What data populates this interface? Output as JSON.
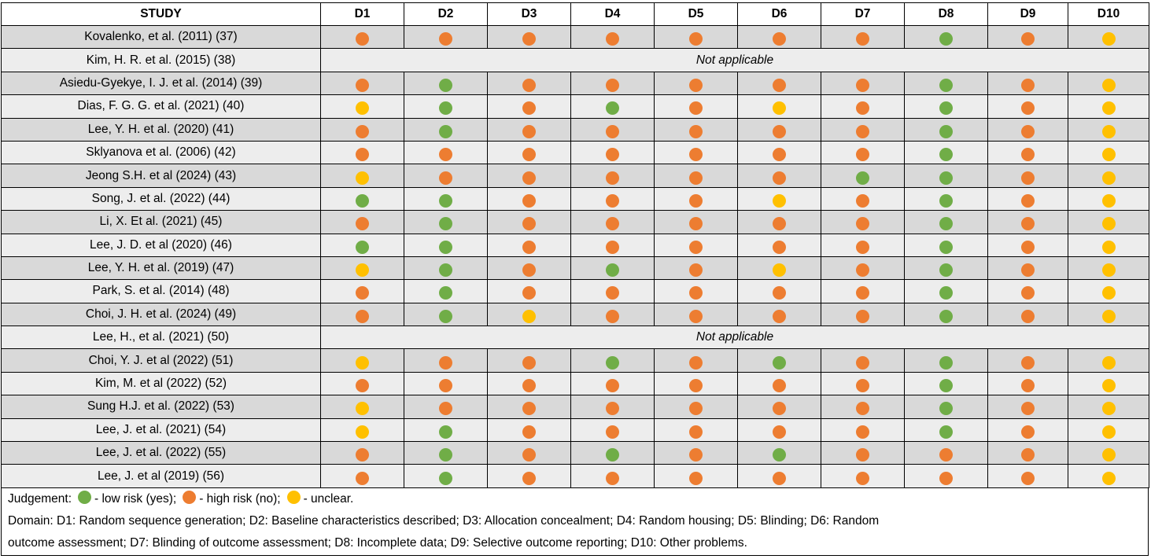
{
  "colors": {
    "g": "#70ad47",
    "o": "#ed7d31",
    "y": "#ffc000"
  },
  "header": {
    "study": "STUDY",
    "domains": [
      "D1",
      "D2",
      "D3",
      "D4",
      "D5",
      "D6",
      "D7",
      "D8",
      "D9",
      "D10"
    ]
  },
  "not_applicable_label": "Not applicable",
  "rows": [
    {
      "study": "Kovalenko, et al. (2011) (37)",
      "judgements": [
        "o",
        "o",
        "o",
        "o",
        "o",
        "o",
        "o",
        "g",
        "o",
        "y"
      ]
    },
    {
      "study": "Kim, H. R. et al. (2015) (38)",
      "not_applicable": true
    },
    {
      "study": "Asiedu-Gyekye, I. J. et al. (2014) (39)",
      "judgements": [
        "o",
        "g",
        "o",
        "o",
        "o",
        "o",
        "o",
        "g",
        "o",
        "y"
      ]
    },
    {
      "study": "Dias, F. G. G. et al. (2021) (40)",
      "judgements": [
        "y",
        "g",
        "o",
        "g",
        "o",
        "y",
        "o",
        "g",
        "o",
        "y"
      ]
    },
    {
      "study": "Lee, Y. H. et al. (2020) (41)",
      "judgements": [
        "o",
        "g",
        "o",
        "o",
        "o",
        "o",
        "o",
        "g",
        "o",
        "y"
      ]
    },
    {
      "study": "Sklyanova et al. (2006) (42)",
      "judgements": [
        "o",
        "o",
        "o",
        "o",
        "o",
        "o",
        "o",
        "g",
        "o",
        "y"
      ]
    },
    {
      "study": "Jeong S.H. et al (2024) (43)",
      "judgements": [
        "y",
        "o",
        "o",
        "o",
        "o",
        "o",
        "g",
        "g",
        "o",
        "y"
      ]
    },
    {
      "study": "Song, J. et al. (2022) (44)",
      "judgements": [
        "g",
        "g",
        "o",
        "o",
        "o",
        "y",
        "o",
        "g",
        "o",
        "y"
      ]
    },
    {
      "study": "Li, X. Et al. (2021) (45)",
      "judgements": [
        "o",
        "g",
        "o",
        "o",
        "o",
        "o",
        "o",
        "g",
        "o",
        "y"
      ]
    },
    {
      "study": "Lee, J. D. et al (2020) (46)",
      "judgements": [
        "g",
        "g",
        "o",
        "o",
        "o",
        "o",
        "o",
        "g",
        "o",
        "y"
      ]
    },
    {
      "study": "Lee, Y. H. et al. (2019) (47)",
      "judgements": [
        "y",
        "g",
        "o",
        "g",
        "o",
        "y",
        "o",
        "g",
        "o",
        "y"
      ]
    },
    {
      "study": "Park, S. et al. (2014) (48)",
      "judgements": [
        "o",
        "g",
        "o",
        "o",
        "o",
        "o",
        "o",
        "g",
        "o",
        "y"
      ]
    },
    {
      "study": "Choi, J. H. et al. (2024) (49)",
      "judgements": [
        "o",
        "g",
        "y",
        "o",
        "o",
        "o",
        "o",
        "g",
        "o",
        "y"
      ]
    },
    {
      "study": "Lee, H., et al. (2021) (50)",
      "not_applicable": true
    },
    {
      "study": "Choi, Y. J. et al (2022) (51)",
      "judgements": [
        "y",
        "o",
        "o",
        "g",
        "o",
        "g",
        "o",
        "g",
        "o",
        "y"
      ]
    },
    {
      "study": "Kim, M. et al (2022) (52)",
      "judgements": [
        "o",
        "o",
        "o",
        "o",
        "o",
        "o",
        "o",
        "g",
        "o",
        "y"
      ]
    },
    {
      "study": "Sung H.J. et al. (2022) (53)",
      "judgements": [
        "y",
        "o",
        "o",
        "o",
        "o",
        "o",
        "o",
        "g",
        "o",
        "y"
      ]
    },
    {
      "study": "Lee, J. et al. (2021) (54)",
      "judgements": [
        "y",
        "g",
        "o",
        "o",
        "o",
        "o",
        "o",
        "g",
        "o",
        "y"
      ]
    },
    {
      "study": "Lee, J. et al. (2022) (55)",
      "judgements": [
        "o",
        "g",
        "o",
        "g",
        "o",
        "g",
        "o",
        "o",
        "o",
        "y"
      ]
    },
    {
      "study": "Lee, J. et al (2019) (56)",
      "judgements": [
        "o",
        "g",
        "o",
        "o",
        "o",
        "o",
        "o",
        "o",
        "o",
        "y"
      ]
    }
  ],
  "footer": {
    "judgement_label": "Judgement:",
    "low": "- low risk (yes);",
    "high": "- high risk (no);",
    "unclear": "- unclear.",
    "domain_line1": "Domain: D1: Random sequence generation; D2: Baseline characteristics described; D3: Allocation concealment; D4: Random housing; D5: Blinding; D6: Random",
    "domain_line2": "outcome assessment; D7: Blinding of outcome assessment; D8: Incomplete data; D9: Selective outcome reporting; D10: Other problems."
  }
}
